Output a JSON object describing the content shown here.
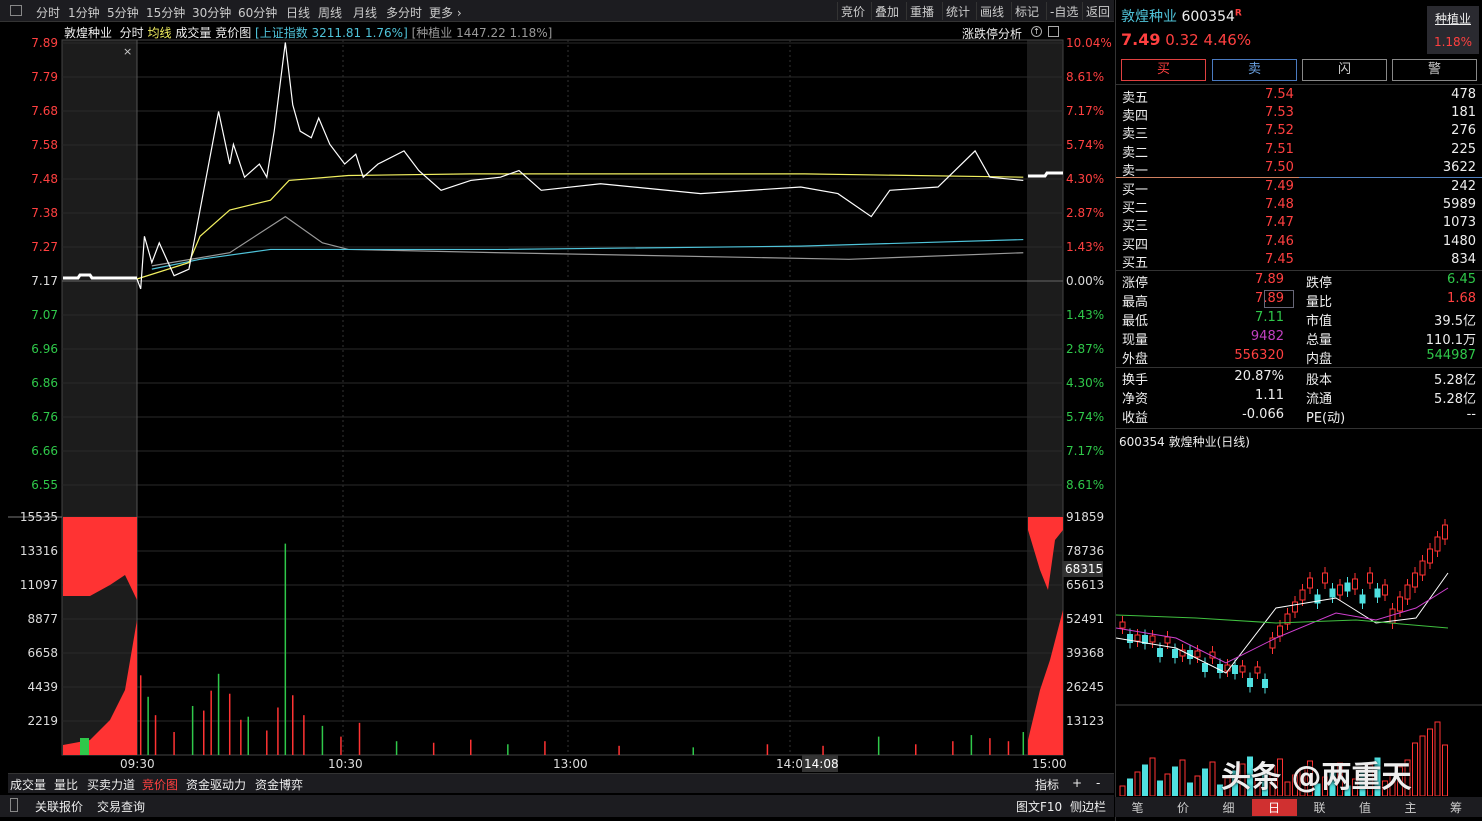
{
  "toolbar": {
    "periods": [
      "分时",
      "1分钟",
      "5分钟",
      "15分钟",
      "30分钟",
      "60分钟",
      "日线",
      "周线",
      "月线",
      "多分时",
      "更多 ›"
    ],
    "buttons": [
      "竞价",
      "叠加",
      "重播",
      "统计",
      "画线",
      "标记",
      "-自选",
      "返回"
    ]
  },
  "legend": {
    "name": "敦煌种业",
    "fenshi": "分时",
    "avg": "均线",
    "vol": "成交量",
    "auction": "竞价图",
    "index": "[上证指数 3211.81 1.76%]",
    "industry": "[种植业 1447.22 1.18%]",
    "limit_analysis": "涨跌停分析"
  },
  "price_axis": {
    "left": [
      "7.89",
      "7.79",
      "7.68",
      "7.58",
      "7.48",
      "7.38",
      "7.27",
      "7.17",
      "7.07",
      "6.96",
      "6.86",
      "6.76",
      "6.66",
      "6.55"
    ],
    "right": [
      "10.04%",
      "8.61%",
      "7.17%",
      "5.74%",
      "4.30%",
      "2.87%",
      "1.43%",
      "0.00%",
      "1.43%",
      "2.87%",
      "4.30%",
      "5.74%",
      "7.17%",
      "8.61%"
    ]
  },
  "vol_axis": {
    "left": [
      "15535",
      "13316",
      "11097",
      "8877",
      "6658",
      "4439",
      "2219"
    ],
    "right": [
      "91859",
      "78736",
      "65613",
      "52491",
      "39368",
      "26245",
      "13123"
    ],
    "marker": "68315"
  },
  "time_axis": [
    "09:30",
    "10:30",
    "13:00",
    "14:00",
    "15:00"
  ],
  "cursor_time": "14:08",
  "chart_data": {
    "type": "line",
    "ylim": [
      6.45,
      7.89
    ],
    "prev_close": 7.17,
    "price": [
      [
        "09:30",
        7.17
      ],
      [
        "09:31",
        7.14
      ],
      [
        "09:32",
        7.3
      ],
      [
        "09:34",
        7.22
      ],
      [
        "09:36",
        7.28
      ],
      [
        "09:40",
        7.18
      ],
      [
        "09:44",
        7.2
      ],
      [
        "09:47",
        7.38
      ],
      [
        "09:49",
        7.5
      ],
      [
        "09:52",
        7.68
      ],
      [
        "09:55",
        7.52
      ],
      [
        "09:56",
        7.58
      ],
      [
        "09:59",
        7.48
      ],
      [
        "10:03",
        7.52
      ],
      [
        "10:05",
        7.48
      ],
      [
        "10:07",
        7.62
      ],
      [
        "10:10",
        7.89
      ],
      [
        "10:12",
        7.7
      ],
      [
        "10:14",
        7.62
      ],
      [
        "10:17",
        7.6
      ],
      [
        "10:19",
        7.66
      ],
      [
        "10:22",
        7.58
      ],
      [
        "10:26",
        7.52
      ],
      [
        "10:29",
        7.55
      ],
      [
        "10:31",
        7.48
      ],
      [
        "10:35",
        7.52
      ],
      [
        "10:42",
        7.56
      ],
      [
        "10:46",
        7.5
      ],
      [
        "10:52",
        7.44
      ],
      [
        "11:00",
        7.47
      ],
      [
        "11:08",
        7.48
      ],
      [
        "11:13",
        7.5
      ],
      [
        "11:19",
        7.44
      ],
      [
        "13:05",
        7.46
      ],
      [
        "13:32",
        7.43
      ],
      [
        "13:59",
        7.45
      ],
      [
        "14:09",
        7.43
      ],
      [
        "14:18",
        7.36
      ],
      [
        "14:23",
        7.44
      ],
      [
        "14:36",
        7.45
      ],
      [
        "14:46",
        7.56
      ],
      [
        "14:50",
        7.48
      ],
      [
        "14:59",
        7.47
      ]
    ],
    "avg": [
      [
        "09:30",
        7.17
      ],
      [
        "09:44",
        7.22
      ],
      [
        "09:47",
        7.3
      ],
      [
        "09:55",
        7.38
      ],
      [
        "10:06",
        7.41
      ],
      [
        "10:11",
        7.47
      ],
      [
        "10:27",
        7.485
      ],
      [
        "11:00",
        7.49
      ],
      [
        "14:00",
        7.49
      ],
      [
        "14:59",
        7.48
      ]
    ],
    "index": [
      [
        "09:34",
        7.2
      ],
      [
        "09:47",
        7.23
      ],
      [
        "10:06",
        7.26
      ],
      [
        "11:08",
        7.26
      ],
      [
        "13:59",
        7.27
      ],
      [
        "14:59",
        7.29
      ]
    ],
    "industry": [
      [
        "09:34",
        7.21
      ],
      [
        "09:55",
        7.25
      ],
      [
        "10:10",
        7.36
      ],
      [
        "10:20",
        7.28
      ],
      [
        "10:27",
        7.26
      ],
      [
        "11:08",
        7.25
      ],
      [
        "14:12",
        7.23
      ],
      [
        "14:59",
        7.25
      ]
    ],
    "volume": [
      [
        "09:31",
        5200
      ],
      [
        "09:33",
        3800
      ],
      [
        "09:35",
        2600
      ],
      [
        "09:40",
        1500
      ],
      [
        "09:45",
        3200
      ],
      [
        "09:48",
        2900
      ],
      [
        "09:50",
        4200
      ],
      [
        "09:52",
        5300
      ],
      [
        "09:55",
        4000
      ],
      [
        "09:58",
        2300
      ],
      [
        "10:00",
        2500
      ],
      [
        "10:05",
        1600
      ],
      [
        "10:08",
        3100
      ],
      [
        "10:10",
        13800
      ],
      [
        "10:12",
        3900
      ],
      [
        "10:15",
        2600
      ],
      [
        "10:20",
        1900
      ],
      [
        "10:25",
        1200
      ],
      [
        "10:30",
        2100
      ],
      [
        "10:40",
        900
      ],
      [
        "10:50",
        800
      ],
      [
        "11:00",
        1000
      ],
      [
        "11:10",
        700
      ],
      [
        "11:20",
        900
      ],
      [
        "13:10",
        600
      ],
      [
        "13:30",
        500
      ],
      [
        "13:50",
        700
      ],
      [
        "14:05",
        600
      ],
      [
        "14:20",
        1200
      ],
      [
        "14:30",
        700
      ],
      [
        "14:40",
        900
      ],
      [
        "14:45",
        1300
      ],
      [
        "14:50",
        1100
      ],
      [
        "14:55",
        900
      ],
      [
        "14:59",
        1500
      ]
    ],
    "colors": {
      "price": "#ffffff",
      "avg": "#f2f060",
      "index": "#4fc3d9",
      "industry": "#999999",
      "up": "#ff3333",
      "down": "#2fc84a"
    }
  },
  "quote": {
    "name": "敦煌种业",
    "code": "600354",
    "r": "R",
    "price": "7.49",
    "change": "0.32",
    "pct": "4.46%",
    "sector": "种植业",
    "sector_pct": "1.18%",
    "buttons": [
      "买",
      "卖",
      "闪",
      "警"
    ],
    "asks": [
      [
        "卖五",
        "7.54",
        "478"
      ],
      [
        "卖四",
        "7.53",
        "181"
      ],
      [
        "卖三",
        "7.52",
        "276"
      ],
      [
        "卖二",
        "7.51",
        "225"
      ],
      [
        "卖一",
        "7.50",
        "3622"
      ]
    ],
    "bids": [
      [
        "买一",
        "7.49",
        "242"
      ],
      [
        "买二",
        "7.48",
        "5989"
      ],
      [
        "买三",
        "7.47",
        "1073"
      ],
      [
        "买四",
        "7.46",
        "1480"
      ],
      [
        "买五",
        "7.45",
        "834"
      ]
    ],
    "stats": [
      [
        "涨停",
        "7.89",
        "跌停",
        "6.45"
      ],
      [
        "最高",
        "7.89",
        "量比",
        "1.68"
      ],
      [
        "最低",
        "7.11",
        "市值",
        "39.5亿"
      ],
      [
        "现量",
        "9482",
        "总量",
        "110.1万"
      ],
      [
        "外盘",
        "556320",
        "内盘",
        "544987"
      ]
    ],
    "stats2": [
      [
        "换手",
        "20.87%",
        "股本",
        "5.28亿"
      ],
      [
        "净资",
        "1.11",
        "流通",
        "5.28亿"
      ],
      [
        "收益",
        "-0.066",
        "PE(动)",
        "--"
      ]
    ],
    "daily_title": "600354 敦煌种业(日线)"
  },
  "bottom_tabs": [
    "成交量",
    "量比",
    "买卖力道",
    "竞价图",
    "资金驱动力",
    "资金博弈"
  ],
  "indicator": "指标",
  "plus": "+",
  "minus": "-",
  "status": [
    "关联报价",
    "交易查询"
  ],
  "status_right": [
    "图文F10",
    "侧边栏"
  ],
  "right_tabs": [
    "笔",
    "价",
    "细",
    "日",
    "联",
    "值",
    "主",
    "筹"
  ],
  "watermark": "头条 @两重天"
}
